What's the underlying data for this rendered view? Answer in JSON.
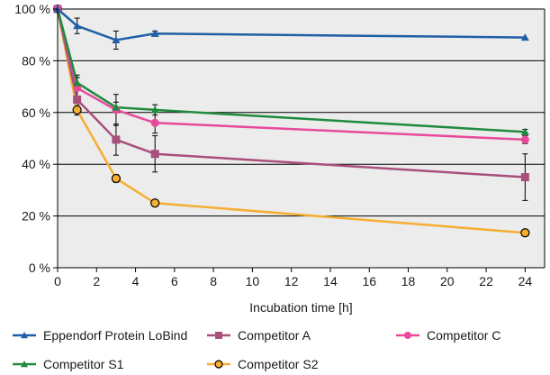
{
  "chart_data": {
    "type": "line",
    "title": "",
    "xlabel": "Incubation time [h]",
    "ylabel": "",
    "xlim": [
      0,
      25
    ],
    "ylim": [
      0,
      100
    ],
    "x_ticks": [
      0,
      2,
      4,
      6,
      8,
      10,
      12,
      14,
      16,
      18,
      20,
      22,
      24
    ],
    "y_ticks": [
      0,
      20,
      40,
      60,
      80,
      100
    ],
    "y_tick_labels": [
      "0 %",
      "20 %",
      "40 %",
      "60 %",
      "80 %",
      "100 %"
    ],
    "grid": "horizontal",
    "plot_background": "#ececec",
    "legend_position": "bottom",
    "series": [
      {
        "name": "Eppendorf Protein LoBind",
        "color": "#1f5fa6",
        "marker": "triangle",
        "points": [
          {
            "x": 0,
            "y": 100
          },
          {
            "x": 1,
            "y": 93.5,
            "err": 3
          },
          {
            "x": 3,
            "y": 88,
            "err": 3.5
          },
          {
            "x": 5,
            "y": 90.5,
            "err": 1
          },
          {
            "x": 24,
            "y": 89
          }
        ]
      },
      {
        "name": "Competitor A",
        "color": "#a84f7c",
        "marker": "square",
        "points": [
          {
            "x": 0,
            "y": 100
          },
          {
            "x": 1,
            "y": 65,
            "err": 5
          },
          {
            "x": 3,
            "y": 49.5,
            "err": 6
          },
          {
            "x": 5,
            "y": 44,
            "err": 7
          },
          {
            "x": 24,
            "y": 35,
            "err": 9
          }
        ]
      },
      {
        "name": "Competitor C",
        "color": "#e8499a",
        "marker": "circle",
        "points": [
          {
            "x": 0,
            "y": 100
          },
          {
            "x": 1,
            "y": 69.5,
            "err": 4
          },
          {
            "x": 3,
            "y": 61,
            "err": 6
          },
          {
            "x": 5,
            "y": 56,
            "err": 4
          },
          {
            "x": 24,
            "y": 49.5,
            "err": 1.5
          }
        ]
      },
      {
        "name": "Competitor S1",
        "color": "#1f8a3c",
        "marker": "triangle",
        "points": [
          {
            "x": 0,
            "y": 100
          },
          {
            "x": 1,
            "y": 71.5,
            "err": 3
          },
          {
            "x": 3,
            "y": 62,
            "err": 2
          },
          {
            "x": 5,
            "y": 61,
            "err": 2
          },
          {
            "x": 24,
            "y": 52.5,
            "err": 1
          }
        ]
      },
      {
        "name": "Competitor S2",
        "color": "#f5ae32",
        "marker": "circle-outlined",
        "points": [
          {
            "x": 0,
            "y": 100
          },
          {
            "x": 1,
            "y": 61,
            "err": 2
          },
          {
            "x": 3,
            "y": 34.5,
            "err": 1.5
          },
          {
            "x": 5,
            "y": 25,
            "err": 1
          },
          {
            "x": 24,
            "y": 13.5,
            "err": 1
          }
        ]
      }
    ]
  }
}
